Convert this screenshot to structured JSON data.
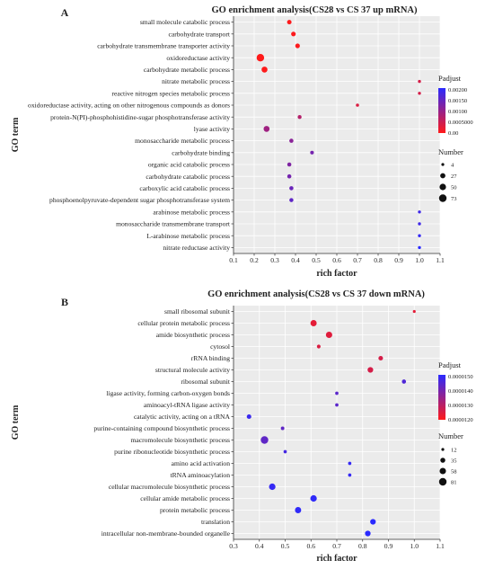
{
  "chart_data": [
    {
      "type": "scatter",
      "panel": "A",
      "title": "GO enrichment analysis(CS28 vs CS 37 up mRNA)",
      "xlabel": "rich factor",
      "ylabel": "GO term",
      "xlim": [
        0.1,
        1.1
      ],
      "xticks": [
        "0.1",
        "0.2",
        "0.3",
        "0.4",
        "0.5",
        "0.6",
        "0.7",
        "0.8",
        "0.9",
        "1.0",
        "1.1"
      ],
      "terms": [
        "small molecule catabolic process",
        "carbohydrate transport",
        "carbohydrate transmembrane transporter activity",
        "oxidoreductase activity",
        "carbohydrate metabolic process",
        "nitrate metabolic process",
        "reactive nitrogen species metabolic process",
        "oxidoreductase activity, acting on other nitrogenous compounds as donors",
        "protein-N(PI)-phosphohistidine-sugar phosphotransferase activity",
        "lyase activity",
        "monosaccharide metabolic process",
        "carbohydrate binding",
        "organic acid catabolic process",
        "carbohydrate catabolic process",
        "carboxylic acid catabolic process",
        "phosphoenolpyruvate-dependent sugar phosphotransferase system",
        "arabinose metabolic process",
        "monosaccharide transmembrane transport",
        "L-arabinose metabolic process",
        "nitrate reductase activity"
      ],
      "points": [
        {
          "x": 0.37,
          "number": 18,
          "padjust": 2e-05
        },
        {
          "x": 0.39,
          "number": 20,
          "padjust": 3e-05
        },
        {
          "x": 0.41,
          "number": 20,
          "padjust": 3e-05
        },
        {
          "x": 0.23,
          "number": 73,
          "padjust": 0.0
        },
        {
          "x": 0.25,
          "number": 40,
          "padjust": 1e-05
        },
        {
          "x": 1.0,
          "number": 5,
          "padjust": 0.0004
        },
        {
          "x": 1.0,
          "number": 5,
          "padjust": 0.0004
        },
        {
          "x": 0.7,
          "number": 6,
          "padjust": 0.00035
        },
        {
          "x": 0.42,
          "number": 12,
          "padjust": 0.0007
        },
        {
          "x": 0.26,
          "number": 40,
          "padjust": 0.0009
        },
        {
          "x": 0.38,
          "number": 14,
          "padjust": 0.0011
        },
        {
          "x": 0.48,
          "number": 10,
          "padjust": 0.0013
        },
        {
          "x": 0.37,
          "number": 14,
          "padjust": 0.0012
        },
        {
          "x": 0.37,
          "number": 14,
          "padjust": 0.0013
        },
        {
          "x": 0.38,
          "number": 14,
          "padjust": 0.0014
        },
        {
          "x": 0.38,
          "number": 13,
          "padjust": 0.0015
        },
        {
          "x": 1.0,
          "number": 5,
          "padjust": 0.0018
        },
        {
          "x": 1.0,
          "number": 5,
          "padjust": 0.0018
        },
        {
          "x": 1.0,
          "number": 5,
          "padjust": 0.0019
        },
        {
          "x": 1.0,
          "number": 5,
          "padjust": 0.002
        }
      ],
      "color_legend": {
        "title": "Padjust",
        "range": [
          0,
          0.002
        ],
        "labels": [
          "0.00200",
          "0.00150",
          "0.00100",
          "0.0005000",
          "0.00"
        ],
        "low_color": "#ff1a1a",
        "high_color": "#2a2aff"
      },
      "size_legend": {
        "title": "Number",
        "values": [
          4,
          27,
          50,
          73
        ],
        "labels": [
          "4",
          "27",
          "50",
          "73"
        ]
      },
      "grid": true
    },
    {
      "type": "scatter",
      "panel": "B",
      "title": "GO enrichment analysis(CS28 vs CS 37 down mRNA)",
      "xlabel": "rich factor",
      "ylabel": "GO term",
      "xlim": [
        0.3,
        1.1
      ],
      "xticks": [
        "0.3",
        "0.4",
        "0.5",
        "0.6",
        "0.7",
        "0.8",
        "0.9",
        "1.0",
        "1.1"
      ],
      "terms": [
        "small ribosomal subunit",
        "cellular protein metabolic process",
        "amide biosynthetic process",
        "cytosol",
        "rRNA binding",
        "structural molecule activity",
        "ribosomal subunit",
        "ligase activity, forming carbon-oxygen bonds",
        "aminoacyl-tRNA ligase activity",
        "catalytic activity, acting on a tRNA",
        "purine-containing compound biosynthetic process",
        "macromolecule biosynthetic process",
        "purine ribonucleotide biosynthetic process",
        "amino acid activation",
        "tRNA aminoacylation",
        "cellular macromolecule biosynthetic process",
        "cellular amide metabolic process",
        "protein metabolic process",
        "translation",
        "intracellular non-membrane-bounded organelle"
      ],
      "points": [
        {
          "x": 1.0,
          "number": 12,
          "padjust": 1.2e-05
        },
        {
          "x": 0.61,
          "number": 55,
          "padjust": 1.2e-05
        },
        {
          "x": 0.67,
          "number": 58,
          "padjust": 1.21e-05
        },
        {
          "x": 0.63,
          "number": 20,
          "padjust": 1.22e-05
        },
        {
          "x": 0.87,
          "number": 30,
          "padjust": 1.23e-05
        },
        {
          "x": 0.83,
          "number": 45,
          "padjust": 1.23e-05
        },
        {
          "x": 0.96,
          "number": 25,
          "padjust": 1.48e-05
        },
        {
          "x": 0.7,
          "number": 16,
          "padjust": 1.46e-05
        },
        {
          "x": 0.7,
          "number": 16,
          "padjust": 1.46e-05
        },
        {
          "x": 0.36,
          "number": 30,
          "padjust": 1.52e-05
        },
        {
          "x": 0.49,
          "number": 18,
          "padjust": 1.45e-05
        },
        {
          "x": 0.42,
          "number": 81,
          "padjust": 1.45e-05
        },
        {
          "x": 0.5,
          "number": 16,
          "padjust": 1.5e-05
        },
        {
          "x": 0.75,
          "number": 16,
          "padjust": 1.53e-05
        },
        {
          "x": 0.75,
          "number": 16,
          "padjust": 1.53e-05
        },
        {
          "x": 0.45,
          "number": 60,
          "padjust": 1.53e-05
        },
        {
          "x": 0.61,
          "number": 60,
          "padjust": 1.54e-05
        },
        {
          "x": 0.55,
          "number": 55,
          "padjust": 1.54e-05
        },
        {
          "x": 0.84,
          "number": 45,
          "padjust": 1.55e-05
        },
        {
          "x": 0.82,
          "number": 45,
          "padjust": 1.55e-05
        }
      ],
      "color_legend": {
        "title": "Padjust",
        "range": [
          1.15e-05,
          1.55e-05
        ],
        "labels": [
          "0.0000150",
          "0.0000140",
          "0.0000130",
          "0.0000120"
        ],
        "low_color": "#ff1a1a",
        "high_color": "#2a2aff"
      },
      "size_legend": {
        "title": "Number",
        "values": [
          12,
          35,
          58,
          81
        ],
        "labels": [
          "12",
          "35",
          "58",
          "81"
        ]
      },
      "grid": true
    }
  ]
}
